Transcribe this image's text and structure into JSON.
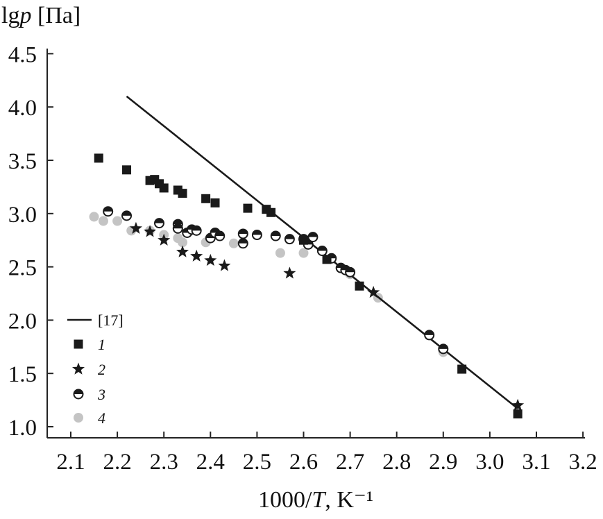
{
  "chart_data": {
    "type": "scatter",
    "title": "",
    "xlabel": "1000/T, K⁻¹",
    "ylabel": "lgp [Па]",
    "xlim": [
      2.05,
      3.2
    ],
    "ylim": [
      0.9,
      4.62
    ],
    "x_ticks": [
      2.1,
      2.2,
      2.3,
      2.4,
      2.5,
      2.6,
      2.7,
      2.8,
      2.9,
      3.0,
      3.1,
      3.2
    ],
    "x_tick_labels": [
      "2.1",
      "2.2",
      "2.3",
      "2.4",
      "2.5",
      "2.6",
      "2.7",
      "2.8",
      "2.9",
      "3.0",
      "3.1",
      "3.2"
    ],
    "y_ticks": [
      1.0,
      1.5,
      2.0,
      2.5,
      3.0,
      3.5,
      4.0,
      4.5
    ],
    "y_tick_labels": [
      "1.0",
      "1.5",
      "2.0",
      "2.5",
      "3.0",
      "3.5",
      "4.0",
      "4.5"
    ],
    "grid": false,
    "legend_position": "lower-left",
    "colors": {
      "ink": "#1a1a1a",
      "gray": "#c4c4c4",
      "axis": "#222222"
    },
    "series": [
      {
        "name": "[17]",
        "marker": "line",
        "x": [
          2.22,
          3.06
        ],
        "y": [
          4.1,
          1.17
        ]
      },
      {
        "name": "1",
        "marker": "square",
        "x": [
          2.16,
          2.22,
          2.27,
          2.28,
          2.29,
          2.3,
          2.33,
          2.34,
          2.39,
          2.41,
          2.48,
          2.52,
          2.53,
          2.6,
          2.65,
          2.72,
          2.94,
          3.06
        ],
        "y": [
          3.52,
          3.41,
          3.31,
          3.32,
          3.28,
          3.24,
          3.22,
          3.19,
          3.14,
          3.1,
          3.05,
          3.04,
          3.01,
          2.75,
          2.57,
          2.32,
          1.54,
          1.12
        ]
      },
      {
        "name": "2",
        "marker": "star",
        "x": [
          2.24,
          2.27,
          2.3,
          2.34,
          2.37,
          2.4,
          2.43,
          2.57,
          2.75,
          3.06
        ],
        "y": [
          2.86,
          2.83,
          2.75,
          2.64,
          2.6,
          2.56,
          2.51,
          2.44,
          2.26,
          1.2
        ]
      },
      {
        "name": "3",
        "marker": "half-circle",
        "x": [
          2.18,
          2.22,
          2.29,
          2.33,
          2.33,
          2.35,
          2.36,
          2.37,
          2.4,
          2.41,
          2.42,
          2.47,
          2.47,
          2.5,
          2.54,
          2.57,
          2.6,
          2.61,
          2.62,
          2.64,
          2.66,
          2.68,
          2.69,
          2.7,
          2.87,
          2.9
        ],
        "y": [
          3.02,
          2.98,
          2.91,
          2.9,
          2.86,
          2.82,
          2.85,
          2.84,
          2.77,
          2.82,
          2.79,
          2.72,
          2.81,
          2.8,
          2.79,
          2.76,
          2.76,
          2.71,
          2.78,
          2.65,
          2.58,
          2.49,
          2.47,
          2.45,
          1.86,
          1.73
        ]
      },
      {
        "name": "4",
        "marker": "gray-circle",
        "x": [
          2.15,
          2.17,
          2.2,
          2.23,
          2.27,
          2.3,
          2.33,
          2.34,
          2.39,
          2.45,
          2.55,
          2.6,
          2.7,
          2.76,
          2.9
        ],
        "y": [
          2.97,
          2.93,
          2.93,
          2.84,
          2.84,
          2.8,
          2.77,
          2.73,
          2.73,
          2.72,
          2.63,
          2.63,
          2.43,
          2.21,
          1.7
        ]
      }
    ]
  }
}
